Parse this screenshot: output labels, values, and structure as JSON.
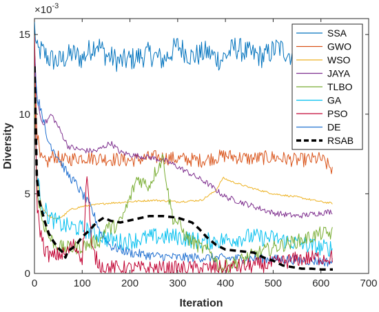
{
  "chart_data": {
    "type": "line",
    "xlabel": "Iteration",
    "ylabel": "Diversity",
    "exponent_base": "×10",
    "exponent_power": "-3",
    "xlim": [
      0,
      700
    ],
    "ylim": [
      0,
      16
    ],
    "xticks": [
      0,
      100,
      200,
      300,
      400,
      500,
      600,
      700
    ],
    "yticks": [
      0,
      5,
      10,
      15
    ],
    "grid": false,
    "legend_position": "top-right",
    "colors": {
      "SSA": "#0072BD",
      "GWO": "#D95319",
      "WSO": "#EDB120",
      "JAYA": "#7E2F8E",
      "TLBO": "#77AC30",
      "GA": "#00BFEF",
      "PSO": "#C00030",
      "DE": "#1F6FD0",
      "RSAB": "#000000"
    },
    "series": [
      {
        "name": "SSA",
        "noise": 0.75,
        "x": [
          0,
          5,
          15,
          30,
          50,
          80,
          100,
          130,
          150,
          180,
          210,
          240,
          270,
          300,
          330,
          360,
          390,
          420,
          450,
          480,
          510,
          540,
          570,
          600,
          625
        ],
        "y": [
          15.6,
          13.9,
          14.0,
          13.5,
          13.3,
          13.8,
          13.5,
          14.5,
          13.7,
          13.3,
          13.5,
          13.8,
          13.4,
          14.3,
          13.6,
          13.9,
          13.4,
          14.2,
          13.8,
          13.6,
          14.2,
          13.7,
          13.5,
          14.0,
          13.2
        ]
      },
      {
        "name": "GWO",
        "noise": 0.45,
        "x": [
          0,
          5,
          12,
          25,
          40,
          60,
          80,
          100,
          150,
          200,
          250,
          300,
          350,
          400,
          450,
          500,
          550,
          600,
          625
        ],
        "y": [
          15.0,
          9.0,
          7.2,
          6.9,
          7.4,
          7.1,
          7.2,
          7.3,
          7.2,
          7.1,
          7.3,
          7.2,
          7.1,
          7.4,
          7.2,
          7.3,
          7.1,
          7.2,
          6.5
        ]
      },
      {
        "name": "WSO",
        "noise": 0.06,
        "x": [
          0,
          5,
          15,
          30,
          45,
          60,
          75,
          100,
          150,
          200,
          250,
          300,
          350,
          380,
          395,
          410,
          450,
          500,
          550,
          600,
          625
        ],
        "y": [
          10.5,
          6.0,
          4.2,
          3.6,
          3.4,
          3.6,
          4.0,
          4.2,
          4.4,
          4.5,
          4.6,
          4.5,
          4.6,
          5.2,
          6.0,
          5.8,
          5.4,
          5.0,
          4.8,
          4.5,
          4.4
        ]
      },
      {
        "name": "JAYA",
        "noise": 0.18,
        "x": [
          0,
          5,
          15,
          25,
          35,
          50,
          70,
          90,
          110,
          130,
          160,
          180,
          210,
          240,
          270,
          280,
          300,
          330,
          360,
          400,
          450,
          500,
          550,
          600,
          625
        ],
        "y": [
          14.0,
          11.0,
          9.5,
          9.5,
          10.0,
          9.2,
          8.0,
          7.8,
          7.7,
          7.7,
          8.2,
          7.6,
          7.4,
          7.3,
          7.1,
          7.0,
          6.7,
          6.2,
          5.7,
          4.8,
          4.3,
          3.8,
          3.6,
          3.8,
          3.9
        ]
      },
      {
        "name": "TLBO",
        "noise": 0.45,
        "x": [
          0,
          5,
          15,
          30,
          45,
          60,
          80,
          100,
          120,
          140,
          150,
          160,
          180,
          200,
          215,
          240,
          255,
          270,
          280,
          290,
          300,
          320,
          350,
          370,
          390,
          430,
          470,
          520,
          560,
          600,
          625
        ],
        "y": [
          12.0,
          5.2,
          3.5,
          2.3,
          1.8,
          1.6,
          1.6,
          1.7,
          1.9,
          2.1,
          3.0,
          2.8,
          3.2,
          4.7,
          6.0,
          5.5,
          6.5,
          7.3,
          5.0,
          3.5,
          3.2,
          2.2,
          1.6,
          1.3,
          0.3,
          0.8,
          1.3,
          1.8,
          2.1,
          2.5,
          2.5
        ]
      },
      {
        "name": "GA",
        "noise": 0.55,
        "x": [
          0,
          5,
          15,
          30,
          60,
          100,
          130,
          150,
          180,
          210,
          250,
          300,
          350,
          400,
          450,
          500,
          550,
          600,
          625
        ],
        "y": [
          13.0,
          6.0,
          4.5,
          3.5,
          3.0,
          2.8,
          2.5,
          2.2,
          2.0,
          2.1,
          2.3,
          2.3,
          2.0,
          2.1,
          2.3,
          2.2,
          1.9,
          1.6,
          1.6
        ]
      },
      {
        "name": "PSO",
        "noise": 0.5,
        "x": [
          0,
          5,
          10,
          20,
          35,
          50,
          65,
          80,
          90,
          100,
          105,
          110,
          120,
          135,
          150,
          200,
          300,
          400,
          500,
          550,
          600,
          625
        ],
        "y": [
          14.5,
          4.5,
          3.0,
          1.6,
          1.0,
          1.2,
          1.2,
          1.8,
          1.5,
          1.0,
          3.0,
          6.5,
          1.5,
          0.6,
          0.35,
          0.3,
          0.3,
          0.35,
          0.6,
          0.9,
          1.0,
          1.0
        ]
      },
      {
        "name": "DE",
        "noise": 0.3,
        "x": [
          0,
          5,
          15,
          25,
          40,
          55,
          70,
          85,
          100,
          120,
          140,
          160,
          200,
          250,
          300,
          350,
          400,
          450,
          500,
          550,
          600,
          625
        ],
        "y": [
          14.0,
          11.0,
          10.3,
          8.5,
          7.8,
          7.0,
          6.2,
          5.7,
          5.0,
          4.0,
          2.5,
          1.7,
          1.3,
          1.1,
          1.0,
          1.0,
          0.95,
          0.95,
          0.9,
          0.85,
          0.75,
          0.7
        ]
      },
      {
        "name": "RSAB",
        "noise": 0,
        "x": [
          0,
          5,
          10,
          20,
          30,
          40,
          50,
          60,
          65,
          70,
          80,
          90,
          100,
          115,
          130,
          145,
          160,
          180,
          210,
          240,
          270,
          300,
          330,
          345,
          360,
          380,
          400,
          430,
          460,
          480,
          500,
          520,
          540,
          560,
          580,
          600,
          625
        ],
        "y": [
          13.0,
          6.0,
          4.6,
          3.4,
          2.5,
          2.0,
          1.6,
          1.3,
          1.0,
          1.4,
          1.6,
          1.9,
          2.3,
          2.7,
          3.2,
          3.5,
          3.3,
          3.2,
          3.4,
          3.6,
          3.6,
          3.5,
          3.2,
          2.8,
          2.3,
          1.8,
          1.5,
          1.4,
          1.3,
          1.0,
          0.8,
          0.5,
          0.4,
          0.3,
          0.3,
          0.25,
          0.25
        ]
      }
    ]
  }
}
